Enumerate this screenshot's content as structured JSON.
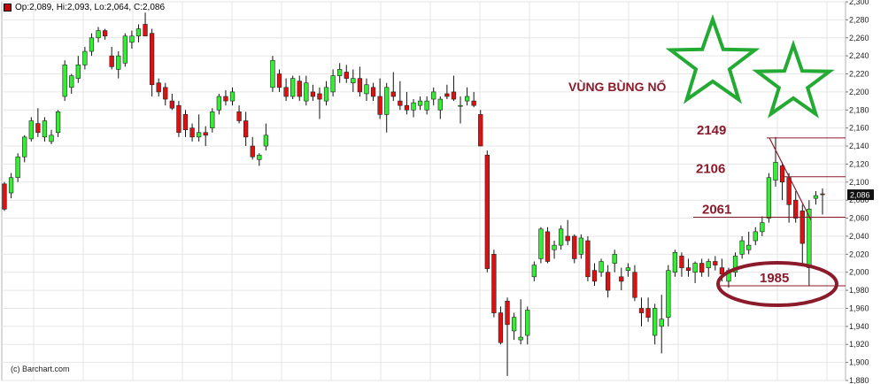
{
  "header": {
    "ohlc_text": "Op:2,089, Hi:2,093, Lo:2,064, C:2,086",
    "swatch_color": "#cc0000"
  },
  "credit": "(c) Barchart.com",
  "chart_data": {
    "type": "candlestick",
    "title": "",
    "ylim": [
      1880,
      2300
    ],
    "y_ticks": [
      "1,880",
      "1,900",
      "1,920",
      "1,940",
      "1,960",
      "1,980",
      "2,000",
      "2,020",
      "2,040",
      "2,060",
      "2,080",
      "2,100",
      "2,120",
      "2,140",
      "2,160",
      "2,180",
      "2,200",
      "2,220",
      "2,240",
      "2,260",
      "2,280",
      "2,300"
    ],
    "last_price_label": "2,086",
    "colors": {
      "up": "#33ee33",
      "down": "#dd1111",
      "annotation": "#8b1a2a",
      "star": "#22aa33",
      "grid": "#e6e6e6"
    },
    "candles": [
      [
        2098,
        2100,
        2068,
        2070
      ],
      [
        2088,
        2110,
        2082,
        2105
      ],
      [
        2105,
        2132,
        2100,
        2128
      ],
      [
        2128,
        2152,
        2122,
        2150
      ],
      [
        2148,
        2172,
        2145,
        2168
      ],
      [
        2165,
        2182,
        2150,
        2155
      ],
      [
        2150,
        2172,
        2145,
        2168
      ],
      [
        2145,
        2158,
        2142,
        2152
      ],
      [
        2155,
        2180,
        2150,
        2178
      ],
      [
        2195,
        2235,
        2190,
        2230
      ],
      [
        2205,
        2220,
        2198,
        2218
      ],
      [
        2215,
        2240,
        2210,
        2230
      ],
      [
        2230,
        2250,
        2225,
        2245
      ],
      [
        2245,
        2265,
        2240,
        2260
      ],
      [
        2260,
        2272,
        2255,
        2268
      ],
      [
        2268,
        2270,
        2258,
        2262
      ],
      [
        2240,
        2250,
        2225,
        2228
      ],
      [
        2225,
        2245,
        2215,
        2240
      ],
      [
        2232,
        2265,
        2228,
        2262
      ],
      [
        2255,
        2268,
        2248,
        2262
      ],
      [
        2262,
        2275,
        2255,
        2270
      ],
      [
        2275,
        2288,
        2262,
        2262
      ],
      [
        2265,
        2270,
        2195,
        2208
      ],
      [
        2210,
        2215,
        2195,
        2200
      ],
      [
        2205,
        2210,
        2185,
        2192
      ],
      [
        2190,
        2198,
        2180,
        2182
      ],
      [
        2185,
        2190,
        2150,
        2155
      ],
      [
        2175,
        2180,
        2150,
        2158
      ],
      [
        2160,
        2165,
        2145,
        2150
      ],
      [
        2150,
        2175,
        2145,
        2155
      ],
      [
        2155,
        2162,
        2140,
        2152
      ],
      [
        2160,
        2182,
        2155,
        2178
      ],
      [
        2180,
        2198,
        2175,
        2195
      ],
      [
        2195,
        2202,
        2185,
        2190
      ],
      [
        2190,
        2205,
        2185,
        2200
      ],
      [
        2178,
        2185,
        2165,
        2168
      ],
      [
        2168,
        2178,
        2140,
        2150
      ],
      [
        2140,
        2150,
        2125,
        2128
      ],
      [
        2125,
        2132,
        2118,
        2130
      ],
      [
        2140,
        2165,
        2135,
        2152
      ],
      [
        2205,
        2240,
        2200,
        2235
      ],
      [
        2220,
        2225,
        2200,
        2205
      ],
      [
        2205,
        2215,
        2190,
        2195
      ],
      [
        2195,
        2218,
        2192,
        2215
      ],
      [
        2212,
        2218,
        2190,
        2195
      ],
      [
        2190,
        2218,
        2185,
        2210
      ],
      [
        2200,
        2208,
        2190,
        2195
      ],
      [
        2198,
        2205,
        2170,
        2192
      ],
      [
        2190,
        2212,
        2185,
        2205
      ],
      [
        2200,
        2225,
        2195,
        2218
      ],
      [
        2218,
        2232,
        2210,
        2225
      ],
      [
        2222,
        2230,
        2210,
        2215
      ],
      [
        2210,
        2225,
        2200,
        2215
      ],
      [
        2215,
        2228,
        2195,
        2200
      ],
      [
        2198,
        2215,
        2190,
        2208
      ],
      [
        2205,
        2210,
        2190,
        2195
      ],
      [
        2195,
        2215,
        2170,
        2175
      ],
      [
        2175,
        2210,
        2155,
        2205
      ],
      [
        2200,
        2222,
        2190,
        2195
      ],
      [
        2190,
        2212,
        2180,
        2185
      ],
      [
        2185,
        2200,
        2175,
        2180
      ],
      [
        2180,
        2192,
        2172,
        2188
      ],
      [
        2185,
        2195,
        2180,
        2190
      ],
      [
        2180,
        2195,
        2175,
        2190
      ],
      [
        2192,
        2205,
        2185,
        2200
      ],
      [
        2180,
        2195,
        2170,
        2192
      ],
      [
        2198,
        2208,
        2192,
        2195
      ],
      [
        2200,
        2218,
        2190,
        2192
      ],
      [
        2185,
        2195,
        2165,
        2185
      ],
      [
        2190,
        2205,
        2185,
        2195
      ],
      [
        2190,
        2200,
        2183,
        2185
      ],
      [
        2175,
        2180,
        2140,
        2140
      ],
      [
        2130,
        2135,
        2000,
        2004
      ],
      [
        2020,
        2025,
        1950,
        1955
      ],
      [
        1955,
        1962,
        1920,
        1922
      ],
      [
        1968,
        1972,
        1885,
        1942
      ],
      [
        1935,
        1955,
        1925,
        1950
      ],
      [
        1925,
        1970,
        1920,
        1928
      ],
      [
        1930,
        1962,
        1920,
        1958
      ],
      [
        1995,
        2012,
        1990,
        2008
      ],
      [
        2015,
        2050,
        2010,
        2048
      ],
      [
        2045,
        2050,
        2010,
        2012
      ],
      [
        2025,
        2035,
        2015,
        2030
      ],
      [
        2030,
        2052,
        2025,
        2048
      ],
      [
        2040,
        2058,
        2030,
        2035
      ],
      [
        2040,
        2042,
        2010,
        2015
      ],
      [
        2020,
        2042,
        2015,
        2038
      ],
      [
        2035,
        2040,
        1990,
        1995
      ],
      [
        2002,
        2010,
        1985,
        1990
      ],
      [
        2000,
        2015,
        1995,
        2012
      ],
      [
        2000,
        2008,
        1972,
        1980
      ],
      [
        2010,
        2025,
        2000,
        2020
      ],
      [
        1995,
        2005,
        1980,
        1990
      ],
      [
        2002,
        2010,
        1995,
        2005
      ],
      [
        2000,
        2008,
        1968,
        1972
      ],
      [
        1960,
        1972,
        1940,
        1955
      ],
      [
        1960,
        1972,
        1945,
        1950
      ],
      [
        1930,
        1965,
        1920,
        1960
      ],
      [
        1940,
        1975,
        1910,
        1948
      ],
      [
        1950,
        2008,
        1940,
        2002
      ],
      [
        2000,
        2025,
        1995,
        2022
      ],
      [
        2018,
        2022,
        1995,
        2005
      ],
      [
        2005,
        2015,
        1995,
        2002
      ],
      [
        2000,
        2012,
        1988,
        2010
      ],
      [
        2010,
        2015,
        1995,
        2000
      ],
      [
        2005,
        2015,
        1995,
        2012
      ],
      [
        2012,
        2018,
        2002,
        2008
      ],
      [
        2005,
        2015,
        1990,
        1998
      ],
      [
        1990,
        2005,
        1983,
        2002
      ],
      [
        2000,
        2022,
        1995,
        2018
      ],
      [
        2020,
        2040,
        2015,
        2035
      ],
      [
        2025,
        2045,
        2020,
        2030
      ],
      [
        2035,
        2050,
        2030,
        2045
      ],
      [
        2045,
        2062,
        2040,
        2055
      ],
      [
        2060,
        2110,
        2055,
        2105
      ],
      [
        2102,
        2150,
        2095,
        2122
      ],
      [
        2118,
        2122,
        2080,
        2100
      ],
      [
        2105,
        2110,
        2055,
        2075
      ],
      [
        2080,
        2090,
        2055,
        2060
      ],
      [
        2068,
        2075,
        2010,
        2032
      ],
      [
        2005,
        2080,
        1985,
        2070
      ],
      [
        2082,
        2090,
        2075,
        2085
      ],
      [
        2087,
        2093,
        2064,
        2086
      ]
    ],
    "levels": [
      {
        "label": "2149",
        "value": 2149
      },
      {
        "label": "2106",
        "value": 2106
      },
      {
        "label": "2061",
        "value": 2061
      },
      {
        "label": "1985",
        "value": 1985
      }
    ],
    "annotation_text": "VÙNG BÙNG NỔ"
  }
}
